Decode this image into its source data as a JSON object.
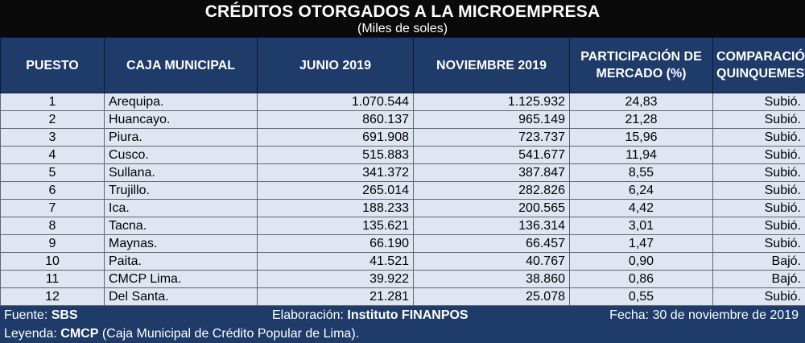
{
  "title": "CRÉDITOS OTORGADOS A LA MICROEMPRESA",
  "subtitle": "(Miles de soles)",
  "columns": [
    "PUESTO",
    "CAJA MUNICIPAL",
    "JUNIO 2019",
    "NOVIEMBRE 2019",
    "PARTICIPACIÓN DE MERCADO (%)",
    "COMPARACIÓN QUINQUEMESTRAL"
  ],
  "rows": [
    [
      "1",
      "Arequipa.",
      "1.070.544",
      "1.125.932",
      "24,83",
      "Subió."
    ],
    [
      "2",
      "Huancayo.",
      "860.137",
      "965.149",
      "21,28",
      "Subió."
    ],
    [
      "3",
      "Piura.",
      "691.908",
      "723.737",
      "15,96",
      "Subió."
    ],
    [
      "4",
      "Cusco.",
      "515.883",
      "541.677",
      "11,94",
      "Subió."
    ],
    [
      "5",
      "Sullana.",
      "341.372",
      "387.847",
      "8,55",
      "Subió."
    ],
    [
      "6",
      "Trujillo.",
      "265.014",
      "282.826",
      "6,24",
      "Subió."
    ],
    [
      "7",
      "Ica.",
      "188.233",
      "200.565",
      "4,42",
      "Subió."
    ],
    [
      "8",
      "Tacna.",
      "135.621",
      "136.314",
      "3,01",
      "Subió."
    ],
    [
      "9",
      "Maynas.",
      "66.190",
      "66.457",
      "1,47",
      "Subió."
    ],
    [
      "10",
      "Paita.",
      "41.521",
      "40.767",
      "0,90",
      "Bajó."
    ],
    [
      "11",
      "CMCP Lima.",
      "39.922",
      "38.860",
      "0,86",
      "Bajó."
    ],
    [
      "12",
      "Del Santa.",
      "21.281",
      "25.078",
      "0,55",
      "Subió."
    ]
  ],
  "footer": {
    "source_label": "Fuente: ",
    "source_value": "SBS",
    "elaboration_label": "Elaboración: ",
    "elaboration_value": "Instituto FINANPOS",
    "date_text": "Fecha: 30 de noviembre de 2019",
    "legend_label": "Leyenda: ",
    "legend_value": "CMCP",
    "legend_text": " (Caja Municipal de Crédito Popular de Lima)."
  },
  "colors": {
    "title_background": "#0a0a0a",
    "header_background": "#1f3b6a",
    "row_background": "#dfe6f2",
    "footer_background": "#1f3b6a"
  }
}
